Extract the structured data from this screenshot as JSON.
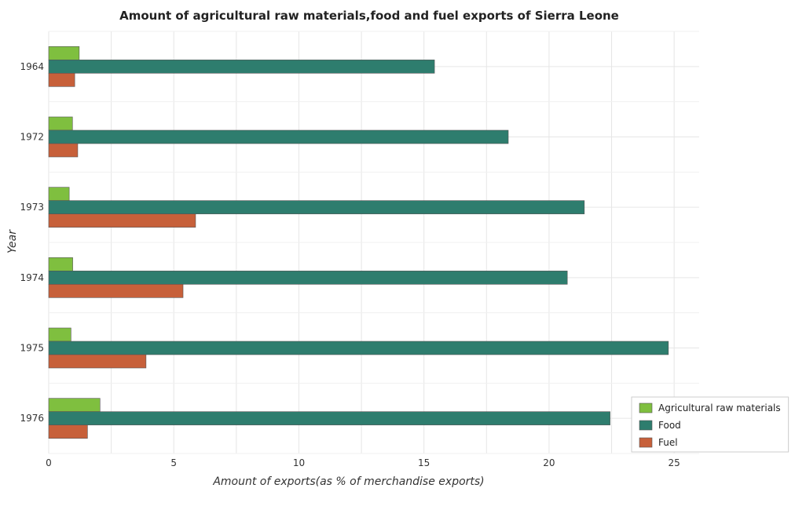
{
  "chart_data": {
    "type": "bar",
    "orientation": "horizontal",
    "title": "Amount of agricultural raw materials,food and fuel exports of Sierra Leone",
    "xlabel": "Amount of exports(as % of merchandise exports)",
    "ylabel": "Year",
    "categories": [
      "1964",
      "1972",
      "1973",
      "1974",
      "1975",
      "1976"
    ],
    "xlim": [
      0,
      26
    ],
    "xticks": [
      0,
      5,
      10,
      15,
      20,
      25
    ],
    "grid": true,
    "legend_position": "bottom-right",
    "series": [
      {
        "name": "Agricultural raw materials",
        "color": "#7fbf3f",
        "values": [
          1.22,
          0.95,
          0.82,
          0.96,
          0.89,
          2.05
        ]
      },
      {
        "name": "Food",
        "color": "#2e7d6e",
        "values": [
          15.42,
          18.37,
          21.41,
          20.73,
          24.77,
          22.44
        ]
      },
      {
        "name": "Fuel",
        "color": "#c7603a",
        "values": [
          1.04,
          1.16,
          5.87,
          5.37,
          3.89,
          1.55
        ]
      }
    ]
  }
}
